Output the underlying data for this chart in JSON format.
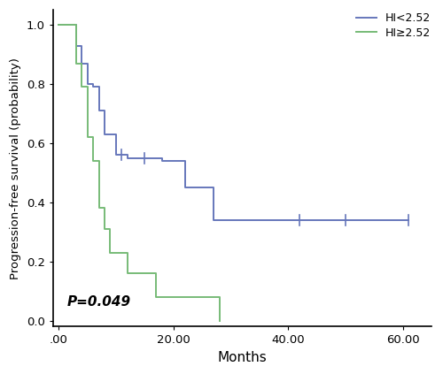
{
  "title": "",
  "xlabel": "Months",
  "ylabel": "Progression-free survival (probability)",
  "pvalue_text": "P=0.049",
  "xlim": [
    -1,
    65
  ],
  "ylim": [
    -0.02,
    1.05
  ],
  "xticks": [
    0.0,
    20.0,
    40.0,
    60.0
  ],
  "xtick_labels": [
    ".00",
    "20.00",
    "40.00",
    "60.00"
  ],
  "yticks": [
    0.0,
    0.2,
    0.4,
    0.6,
    0.8,
    1.0
  ],
  "ytick_labels": [
    "0.0",
    "0.2",
    "0.4",
    "0.6",
    "0.8",
    "1.0"
  ],
  "legend_labels": [
    "HI<2.52",
    "HI≥2.52"
  ],
  "color_low": "#6677bb",
  "color_high": "#77bb77",
  "hi_low_times": [
    0,
    2,
    3,
    4,
    5,
    6,
    7,
    8,
    10,
    11,
    12,
    15,
    18,
    22,
    27,
    32,
    42,
    50,
    61
  ],
  "hi_low_surv": [
    1.0,
    1.0,
    0.93,
    0.87,
    0.8,
    0.79,
    0.71,
    0.63,
    0.56,
    0.56,
    0.55,
    0.55,
    0.54,
    0.45,
    0.34,
    0.34,
    0.34,
    0.34,
    0.34
  ],
  "hi_low_censor_times": [
    11,
    15,
    42,
    50,
    61
  ],
  "hi_low_censor_surv": [
    0.56,
    0.55,
    0.34,
    0.34,
    0.34
  ],
  "hi_high_times": [
    0,
    2,
    3,
    4,
    5,
    6,
    7,
    8,
    9,
    10,
    12,
    14,
    17,
    21,
    24,
    28
  ],
  "hi_high_surv": [
    1.0,
    1.0,
    0.87,
    0.79,
    0.62,
    0.54,
    0.38,
    0.31,
    0.23,
    0.23,
    0.16,
    0.16,
    0.08,
    0.08,
    0.08,
    0.0
  ],
  "hi_high_censor_times": [],
  "hi_high_censor_surv": [],
  "background_color": "#ffffff",
  "spine_color": "#000000",
  "figwidth": 5.0,
  "figheight": 4.23,
  "dpi": 100
}
